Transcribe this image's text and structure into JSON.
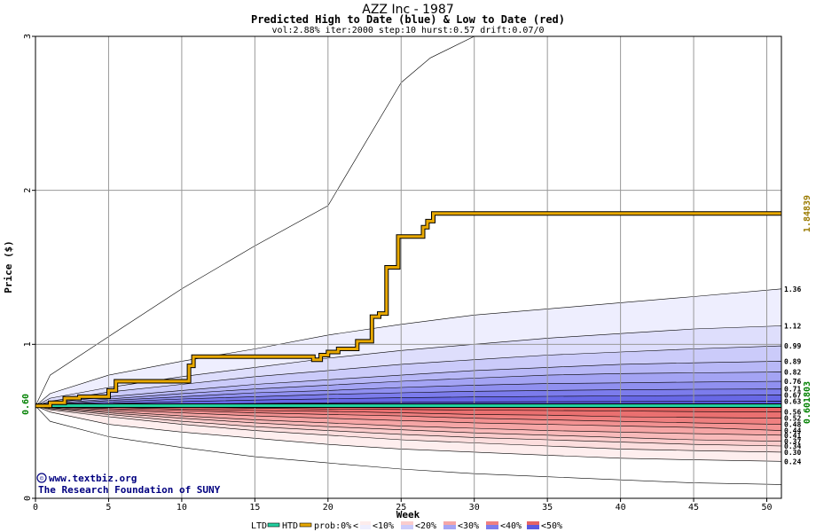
{
  "header": {
    "title": "AZZ Inc - 1987",
    "subtitle": "Predicted High to Date (blue) &  Low to Date (red)",
    "params": "vol:2.88% iter:2000 step:10 hurst:0.57 drift:0.07/0"
  },
  "credits": {
    "site": "www.textbiz.org",
    "org": "The Research Foundation of SUNY",
    "copyright_symbol": "©"
  },
  "legend": {
    "ltd": "LTD",
    "htd": "HTD",
    "prob": "prob:0%",
    "b10": "<10%",
    "b20": "<20%",
    "b30": "<30%",
    "b40": "<40%",
    "b50": "<50%",
    "open_arrow": "<"
  },
  "chart_data": {
    "type": "area",
    "title": "AZZ Inc - 1987",
    "subtitle": "Predicted High to Date (blue) &  Low to Date (red)",
    "xlabel": "Week",
    "ylabel": "Price ($)",
    "xlim": [
      0,
      51
    ],
    "ylim": [
      0,
      3
    ],
    "x_ticks": [
      0,
      5,
      10,
      15,
      20,
      25,
      30,
      35,
      40,
      45,
      50
    ],
    "y_ticks": [
      0,
      1,
      2,
      3
    ],
    "grid": true,
    "start_price_label": "0.60",
    "ltd_final_label": "0.601803",
    "htd_final_label": "1.84839",
    "colors": {
      "htd": "#e8a800",
      "ltd": "#22d0a0",
      "grid": "#999999",
      "axis_label_green": "#008000",
      "axis_label_gold": "#9a7a00",
      "credit_text": "#000080"
    },
    "high_band_labels": [
      "1.36",
      "1.12",
      "0.99",
      "0.89",
      "0.82",
      "0.76",
      "0.71",
      "0.67",
      "0.63"
    ],
    "low_band_labels": [
      "0.56",
      "0.52",
      "0.48",
      "0.44",
      "0.41",
      "0.37",
      "0.34",
      "0.30",
      "0.24"
    ],
    "high_bands": [
      {
        "name": "0%",
        "color": "#ffffff",
        "upper": [
          [
            0,
            0.6
          ],
          [
            1,
            0.8
          ],
          [
            5,
            1.05
          ],
          [
            10,
            1.36
          ],
          [
            15,
            1.64
          ],
          [
            20,
            1.9
          ],
          [
            25,
            2.7
          ],
          [
            27,
            2.86
          ],
          [
            30,
            3.05
          ],
          [
            40,
            3.4
          ],
          [
            51,
            3.7
          ]
        ]
      },
      {
        "name": "<10%",
        "color": "#eeeefe",
        "upper": [
          [
            0,
            0.6
          ],
          [
            1,
            0.68
          ],
          [
            5,
            0.8
          ],
          [
            10,
            0.89
          ],
          [
            15,
            0.97
          ],
          [
            20,
            1.06
          ],
          [
            25,
            1.13
          ],
          [
            30,
            1.19
          ],
          [
            35,
            1.23
          ],
          [
            40,
            1.27
          ],
          [
            45,
            1.31
          ],
          [
            51,
            1.36
          ]
        ]
      },
      {
        "name": "<10%",
        "color": "#dedefc",
        "upper": [
          [
            0,
            0.6
          ],
          [
            1,
            0.65
          ],
          [
            5,
            0.72
          ],
          [
            10,
            0.79
          ],
          [
            15,
            0.85
          ],
          [
            20,
            0.91
          ],
          [
            25,
            0.96
          ],
          [
            30,
            1.0
          ],
          [
            35,
            1.04
          ],
          [
            40,
            1.07
          ],
          [
            45,
            1.1
          ],
          [
            51,
            1.12
          ]
        ]
      },
      {
        "name": "<20%",
        "color": "#cbcbfa",
        "upper": [
          [
            0,
            0.6
          ],
          [
            1,
            0.63
          ],
          [
            5,
            0.69
          ],
          [
            10,
            0.74
          ],
          [
            15,
            0.79
          ],
          [
            20,
            0.83
          ],
          [
            25,
            0.87
          ],
          [
            30,
            0.9
          ],
          [
            35,
            0.93
          ],
          [
            40,
            0.95
          ],
          [
            45,
            0.97
          ],
          [
            51,
            0.99
          ]
        ]
      },
      {
        "name": "<20%",
        "color": "#b8b8f7",
        "upper": [
          [
            0,
            0.6
          ],
          [
            1,
            0.62
          ],
          [
            5,
            0.66
          ],
          [
            10,
            0.7
          ],
          [
            15,
            0.74
          ],
          [
            20,
            0.77
          ],
          [
            25,
            0.8
          ],
          [
            30,
            0.83
          ],
          [
            35,
            0.85
          ],
          [
            40,
            0.87
          ],
          [
            45,
            0.88
          ],
          [
            51,
            0.89
          ]
        ]
      },
      {
        "name": "<30%",
        "color": "#a4a4f4",
        "upper": [
          [
            0,
            0.6
          ],
          [
            1,
            0.615
          ],
          [
            5,
            0.645
          ],
          [
            10,
            0.68
          ],
          [
            15,
            0.71
          ],
          [
            20,
            0.735
          ],
          [
            25,
            0.76
          ],
          [
            30,
            0.78
          ],
          [
            35,
            0.8
          ],
          [
            40,
            0.81
          ],
          [
            45,
            0.815
          ],
          [
            51,
            0.82
          ]
        ]
      },
      {
        "name": "<30%",
        "color": "#9090f0",
        "upper": [
          [
            0,
            0.6
          ],
          [
            1,
            0.61
          ],
          [
            5,
            0.635
          ],
          [
            10,
            0.66
          ],
          [
            15,
            0.685
          ],
          [
            20,
            0.7
          ],
          [
            25,
            0.72
          ],
          [
            30,
            0.735
          ],
          [
            35,
            0.745
          ],
          [
            40,
            0.75
          ],
          [
            45,
            0.755
          ],
          [
            51,
            0.76
          ]
        ]
      },
      {
        "name": "<40%",
        "color": "#7c7cec",
        "upper": [
          [
            0,
            0.6
          ],
          [
            1,
            0.607
          ],
          [
            5,
            0.625
          ],
          [
            10,
            0.645
          ],
          [
            15,
            0.66
          ],
          [
            20,
            0.675
          ],
          [
            25,
            0.685
          ],
          [
            30,
            0.695
          ],
          [
            35,
            0.7
          ],
          [
            40,
            0.705
          ],
          [
            45,
            0.708
          ],
          [
            51,
            0.71
          ]
        ]
      },
      {
        "name": "<40%",
        "color": "#6868e6",
        "upper": [
          [
            0,
            0.6
          ],
          [
            1,
            0.604
          ],
          [
            5,
            0.615
          ],
          [
            10,
            0.628
          ],
          [
            15,
            0.638
          ],
          [
            20,
            0.646
          ],
          [
            25,
            0.653
          ],
          [
            30,
            0.658
          ],
          [
            35,
            0.662
          ],
          [
            40,
            0.665
          ],
          [
            45,
            0.668
          ],
          [
            51,
            0.67
          ]
        ]
      },
      {
        "name": "<50%",
        "color": "#5a5ae0",
        "upper": [
          [
            0,
            0.6
          ],
          [
            1,
            0.602
          ],
          [
            5,
            0.607
          ],
          [
            10,
            0.612
          ],
          [
            15,
            0.616
          ],
          [
            20,
            0.62
          ],
          [
            25,
            0.623
          ],
          [
            30,
            0.626
          ],
          [
            35,
            0.627
          ],
          [
            40,
            0.628
          ],
          [
            45,
            0.629
          ],
          [
            51,
            0.63
          ]
        ]
      }
    ],
    "low_bands": [
      {
        "name": "0%",
        "color": "#ffffff",
        "lower": [
          [
            0,
            0.6
          ],
          [
            1,
            0.5
          ],
          [
            5,
            0.4
          ],
          [
            10,
            0.33
          ],
          [
            15,
            0.27
          ],
          [
            20,
            0.23
          ],
          [
            25,
            0.19
          ],
          [
            30,
            0.16
          ],
          [
            35,
            0.14
          ],
          [
            40,
            0.12
          ],
          [
            45,
            0.1
          ],
          [
            51,
            0.09
          ]
        ]
      },
      {
        "name": "<10%",
        "color": "#feeeee",
        "lower": [
          [
            0,
            0.6
          ],
          [
            1,
            0.56
          ],
          [
            5,
            0.48
          ],
          [
            10,
            0.43
          ],
          [
            15,
            0.39
          ],
          [
            20,
            0.35
          ],
          [
            25,
            0.32
          ],
          [
            30,
            0.3
          ],
          [
            35,
            0.28
          ],
          [
            40,
            0.26
          ],
          [
            45,
            0.25
          ],
          [
            51,
            0.24
          ]
        ]
      },
      {
        "name": "<10%",
        "color": "#fcdede",
        "lower": [
          [
            0,
            0.6
          ],
          [
            1,
            0.575
          ],
          [
            5,
            0.53
          ],
          [
            10,
            0.48
          ],
          [
            15,
            0.44
          ],
          [
            20,
            0.41
          ],
          [
            25,
            0.38
          ],
          [
            30,
            0.36
          ],
          [
            35,
            0.34
          ],
          [
            40,
            0.32
          ],
          [
            45,
            0.31
          ],
          [
            51,
            0.3
          ]
        ]
      },
      {
        "name": "<20%",
        "color": "#fbcccc",
        "lower": [
          [
            0,
            0.6
          ],
          [
            1,
            0.582
          ],
          [
            5,
            0.545
          ],
          [
            10,
            0.5
          ],
          [
            15,
            0.465
          ],
          [
            20,
            0.44
          ],
          [
            25,
            0.415
          ],
          [
            30,
            0.395
          ],
          [
            35,
            0.38
          ],
          [
            40,
            0.365
          ],
          [
            45,
            0.35
          ],
          [
            51,
            0.34
          ]
        ]
      },
      {
        "name": "<20%",
        "color": "#f9baba",
        "lower": [
          [
            0,
            0.6
          ],
          [
            1,
            0.587
          ],
          [
            5,
            0.555
          ],
          [
            10,
            0.52
          ],
          [
            15,
            0.49
          ],
          [
            20,
            0.465
          ],
          [
            25,
            0.445
          ],
          [
            30,
            0.425
          ],
          [
            35,
            0.41
          ],
          [
            40,
            0.395
          ],
          [
            45,
            0.38
          ],
          [
            51,
            0.37
          ]
        ]
      },
      {
        "name": "<30%",
        "color": "#f6a6a6",
        "lower": [
          [
            0,
            0.6
          ],
          [
            1,
            0.59
          ],
          [
            5,
            0.565
          ],
          [
            10,
            0.535
          ],
          [
            15,
            0.51
          ],
          [
            20,
            0.49
          ],
          [
            25,
            0.47
          ],
          [
            30,
            0.455
          ],
          [
            35,
            0.44
          ],
          [
            40,
            0.43
          ],
          [
            45,
            0.42
          ],
          [
            51,
            0.41
          ]
        ]
      },
      {
        "name": "<30%",
        "color": "#f39292",
        "lower": [
          [
            0,
            0.6
          ],
          [
            1,
            0.593
          ],
          [
            5,
            0.575
          ],
          [
            10,
            0.555
          ],
          [
            15,
            0.535
          ],
          [
            20,
            0.52
          ],
          [
            25,
            0.505
          ],
          [
            30,
            0.49
          ],
          [
            35,
            0.48
          ],
          [
            40,
            0.47
          ],
          [
            45,
            0.46
          ],
          [
            51,
            0.44
          ]
        ]
      },
      {
        "name": "<40%",
        "color": "#ef8080",
        "lower": [
          [
            0,
            0.6
          ],
          [
            1,
            0.595
          ],
          [
            5,
            0.583
          ],
          [
            10,
            0.57
          ],
          [
            15,
            0.555
          ],
          [
            20,
            0.545
          ],
          [
            25,
            0.535
          ],
          [
            30,
            0.52
          ],
          [
            35,
            0.51
          ],
          [
            40,
            0.5
          ],
          [
            45,
            0.49
          ],
          [
            51,
            0.48
          ]
        ]
      },
      {
        "name": "<40%",
        "color": "#ea7070",
        "lower": [
          [
            0,
            0.6
          ],
          [
            1,
            0.597
          ],
          [
            5,
            0.59
          ],
          [
            10,
            0.58
          ],
          [
            15,
            0.57
          ],
          [
            20,
            0.565
          ],
          [
            25,
            0.555
          ],
          [
            30,
            0.545
          ],
          [
            35,
            0.54
          ],
          [
            40,
            0.53
          ],
          [
            45,
            0.525
          ],
          [
            51,
            0.52
          ]
        ]
      },
      {
        "name": "<50%",
        "color": "#e66464",
        "lower": [
          [
            0,
            0.6
          ],
          [
            1,
            0.599
          ],
          [
            5,
            0.595
          ],
          [
            10,
            0.59
          ],
          [
            15,
            0.585
          ],
          [
            20,
            0.58
          ],
          [
            25,
            0.577
          ],
          [
            30,
            0.573
          ],
          [
            35,
            0.57
          ],
          [
            40,
            0.567
          ],
          [
            45,
            0.563
          ],
          [
            51,
            0.56
          ]
        ]
      }
    ],
    "htd": {
      "name": "HTD",
      "x": [
        0,
        1,
        1,
        2,
        2,
        3,
        3,
        5,
        5,
        5.5,
        5.5,
        10.5,
        10.5,
        10.8,
        10.8,
        19,
        19,
        19.5,
        19.5,
        20,
        20,
        20.7,
        20.7,
        22,
        22,
        23,
        23,
        23.5,
        23.5,
        24,
        24,
        24.8,
        24.8,
        26.5,
        26.5,
        26.8,
        26.8,
        27.2,
        27.2,
        51
      ],
      "y": [
        0.6,
        0.6,
        0.62,
        0.62,
        0.65,
        0.65,
        0.66,
        0.66,
        0.7,
        0.7,
        0.76,
        0.76,
        0.86,
        0.86,
        0.92,
        0.92,
        0.9,
        0.9,
        0.93,
        0.93,
        0.95,
        0.95,
        0.97,
        0.97,
        1.02,
        1.02,
        1.18,
        1.18,
        1.2,
        1.2,
        1.5,
        1.5,
        1.7,
        1.7,
        1.76,
        1.76,
        1.8,
        1.8,
        1.85,
        1.85
      ]
    },
    "ltd": {
      "name": "LTD",
      "x": [
        0,
        51
      ],
      "y": [
        0.601803,
        0.601803
      ]
    }
  }
}
